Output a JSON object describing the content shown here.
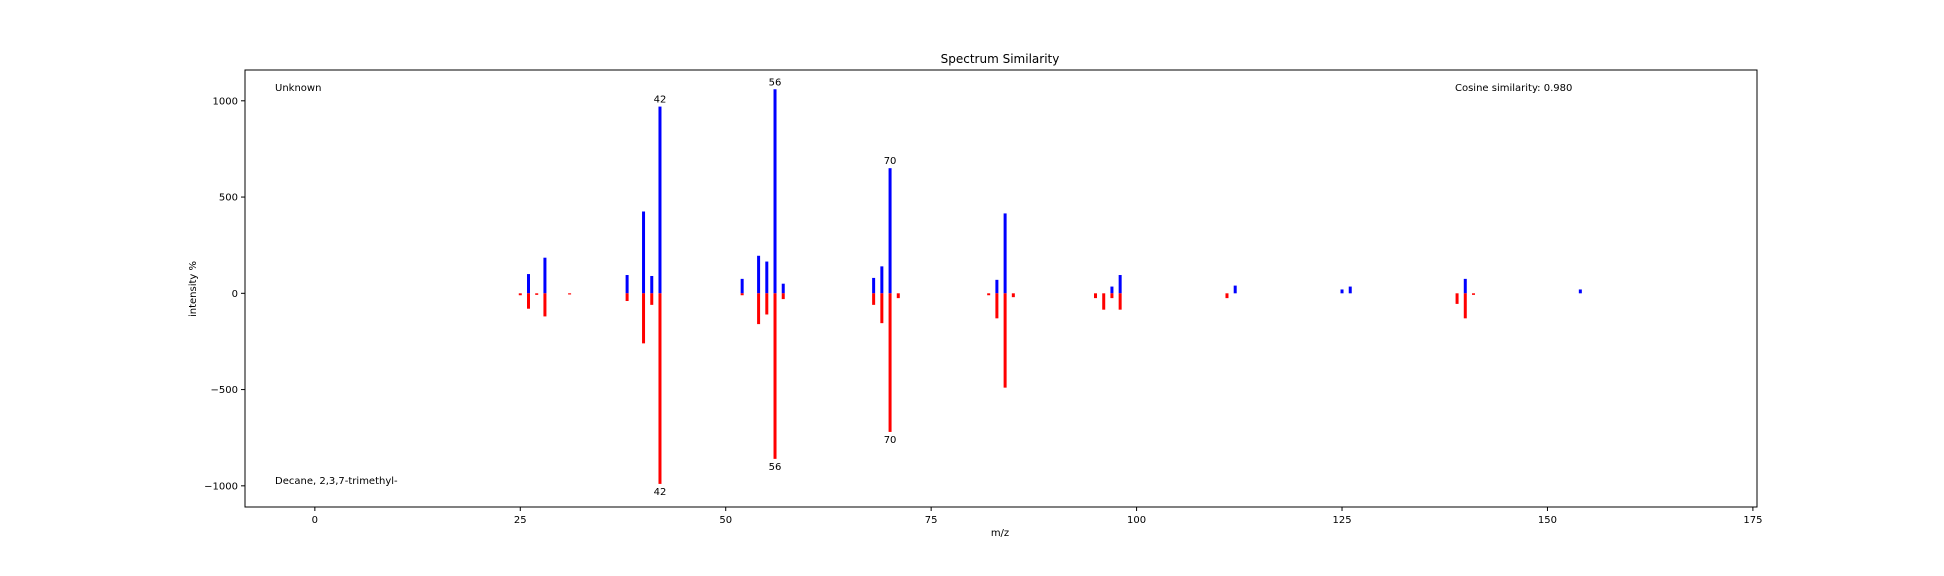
{
  "chart_data": {
    "type": "bar",
    "title": "Spectrum Similarity",
    "xlabel": "m/z",
    "ylabel": "intensity %",
    "xlim": [
      -8.5,
      175.5
    ],
    "ylim": [
      -1110,
      1160
    ],
    "x_ticks": [
      0,
      25,
      50,
      75,
      100,
      125,
      150,
      175
    ],
    "y_ticks": [
      1000,
      500,
      0,
      -500,
      -1000
    ],
    "y_tick_labels": [
      "1000",
      "500",
      "0",
      "−500",
      "−1000"
    ],
    "grid": false,
    "annotations": {
      "top_left": "Unknown",
      "bottom_left": "Decane, 2,3,7-trimethyl-",
      "top_right": "Cosine similarity: 0.980"
    },
    "colors": {
      "unknown": "#0000ff",
      "reference": "#ff0000"
    },
    "series": [
      {
        "name": "Unknown",
        "direction": "up",
        "x": [
          26,
          28,
          38,
          40,
          41,
          42,
          52,
          54,
          55,
          56,
          57,
          68,
          69,
          70,
          83,
          84,
          97,
          98,
          112,
          125,
          126,
          140,
          154
        ],
        "values": [
          100,
          185,
          95,
          425,
          90,
          970,
          75,
          195,
          165,
          1060,
          50,
          80,
          140,
          650,
          70,
          415,
          35,
          95,
          40,
          20,
          35,
          75,
          20
        ],
        "labeled": [
          {
            "x": 42,
            "text": "42"
          },
          {
            "x": 56,
            "text": "56"
          },
          {
            "x": 70,
            "text": "70"
          }
        ]
      },
      {
        "name": "Decane, 2,3,7-trimethyl-",
        "direction": "down",
        "x": [
          25,
          26,
          27,
          28,
          31,
          38,
          40,
          41,
          42,
          52,
          54,
          55,
          56,
          57,
          68,
          69,
          70,
          71,
          82,
          83,
          84,
          85,
          95,
          96,
          97,
          98,
          111,
          139,
          140,
          141
        ],
        "values": [
          10,
          80,
          8,
          120,
          6,
          40,
          260,
          60,
          990,
          10,
          160,
          110,
          860,
          30,
          60,
          155,
          720,
          25,
          10,
          130,
          490,
          20,
          25,
          85,
          25,
          85,
          25,
          55,
          130,
          8
        ],
        "labeled": [
          {
            "x": 42,
            "text": "42"
          },
          {
            "x": 56,
            "text": "56"
          },
          {
            "x": 70,
            "text": "70"
          }
        ]
      }
    ]
  }
}
